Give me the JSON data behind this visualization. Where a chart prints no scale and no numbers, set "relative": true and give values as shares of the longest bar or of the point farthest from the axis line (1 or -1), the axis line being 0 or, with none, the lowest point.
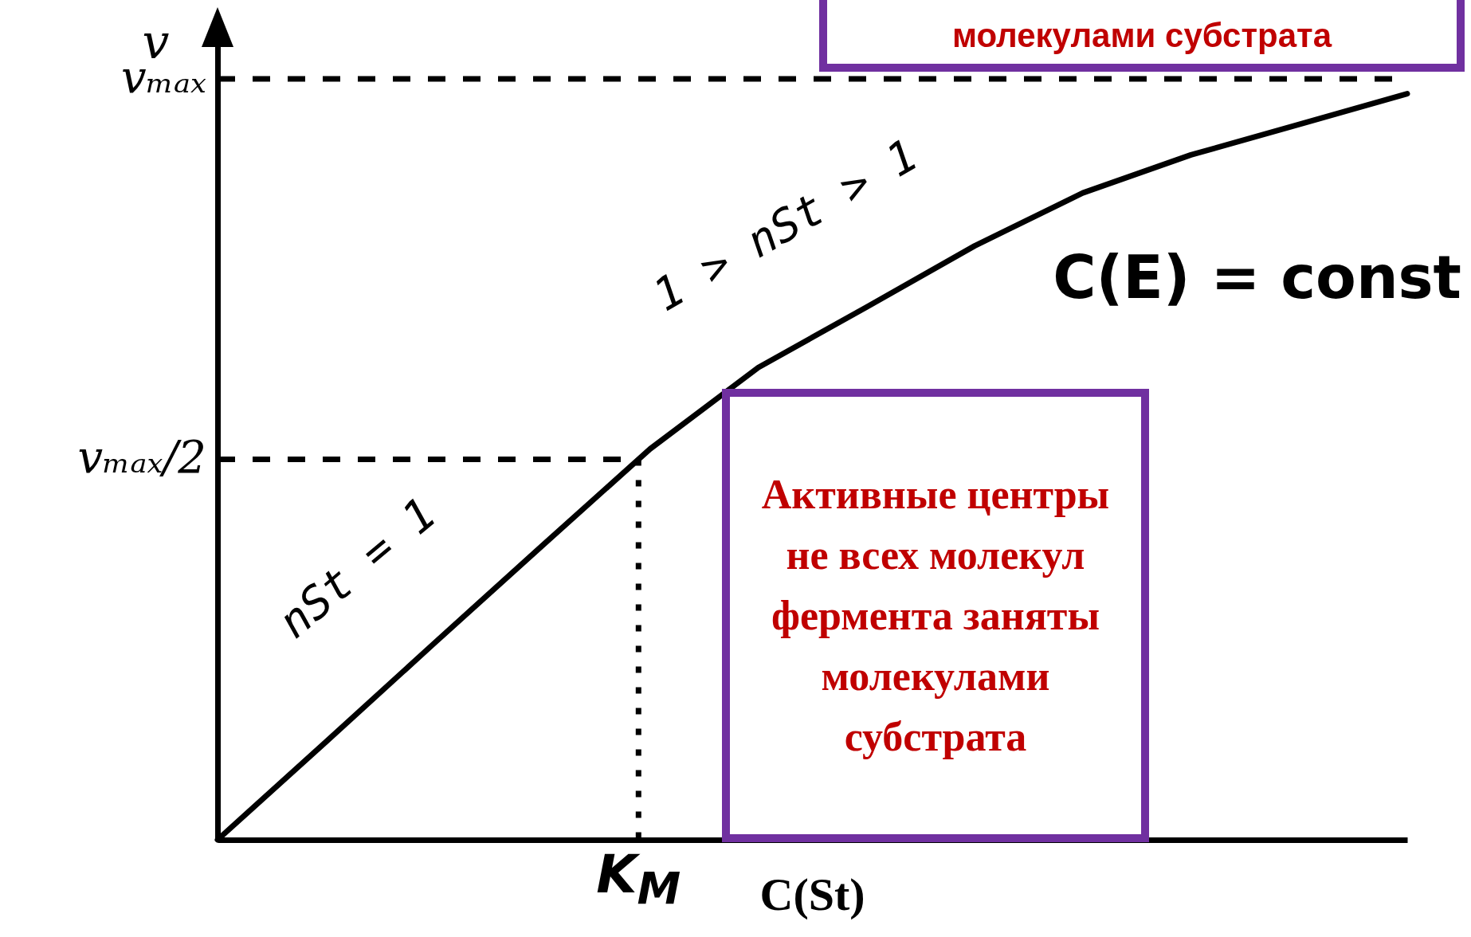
{
  "chart_data": {
    "type": "line",
    "xlabel": "C(St)",
    "ylabel": "v",
    "grid": false,
    "marker": "none",
    "line_style": "solid",
    "categories": [
      null,
      null,
      null,
      null,
      null,
      null,
      null,
      null,
      null,
      null,
      null,
      null
    ],
    "relative": true,
    "legend": false,
    "series": [
      {
        "color": "#000000",
        "values": [
          0,
          0.131,
          0.263,
          0.394,
          0.524,
          0.633,
          0.714,
          0.796,
          0.867,
          0.918,
          0.959,
          1
        ]
      }
    ],
    "ref_lines": [
      {
        "axis": "y",
        "value": 1.02,
        "label": "vₘₐₓ",
        "color": "#000000",
        "line_style": "dashed"
      },
      {
        "axis": "y",
        "value": 0.51,
        "label": "vₘₐₓ/2",
        "color": "#000000",
        "line_style": "dashed"
      }
    ],
    "annotations": [
      {
        "text": "K$_{M}$",
        "y": 0.51
      },
      "nSt = 1",
      "1 > nSt > 1",
      "C(E) = const",
      "Активные центры не всех молекул фермента заняты молекулами субстрата",
      "молекулами субстрата"
    ]
  }
}
